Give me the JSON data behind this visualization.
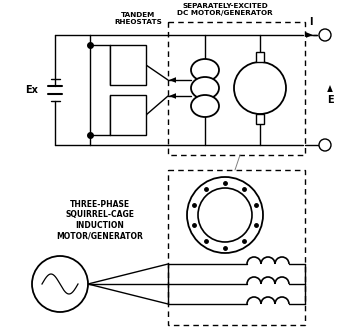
{
  "background_color": "#ffffff",
  "line_color": "#000000",
  "fig_width": 3.39,
  "fig_height": 3.35,
  "dpi": 100,
  "labels": {
    "ex": "Ex",
    "tandem": "TANDEM\nRHEOSTATS",
    "sep_excited": "SEPARATELY-EXCITED\nDC MOTOR/GENERATOR",
    "three_phase": "THREE-PHASE\nSQUIRREL-CAGE\nINDUCTION\nMOTOR/GENERATOR",
    "I": "I",
    "E": "E"
  }
}
